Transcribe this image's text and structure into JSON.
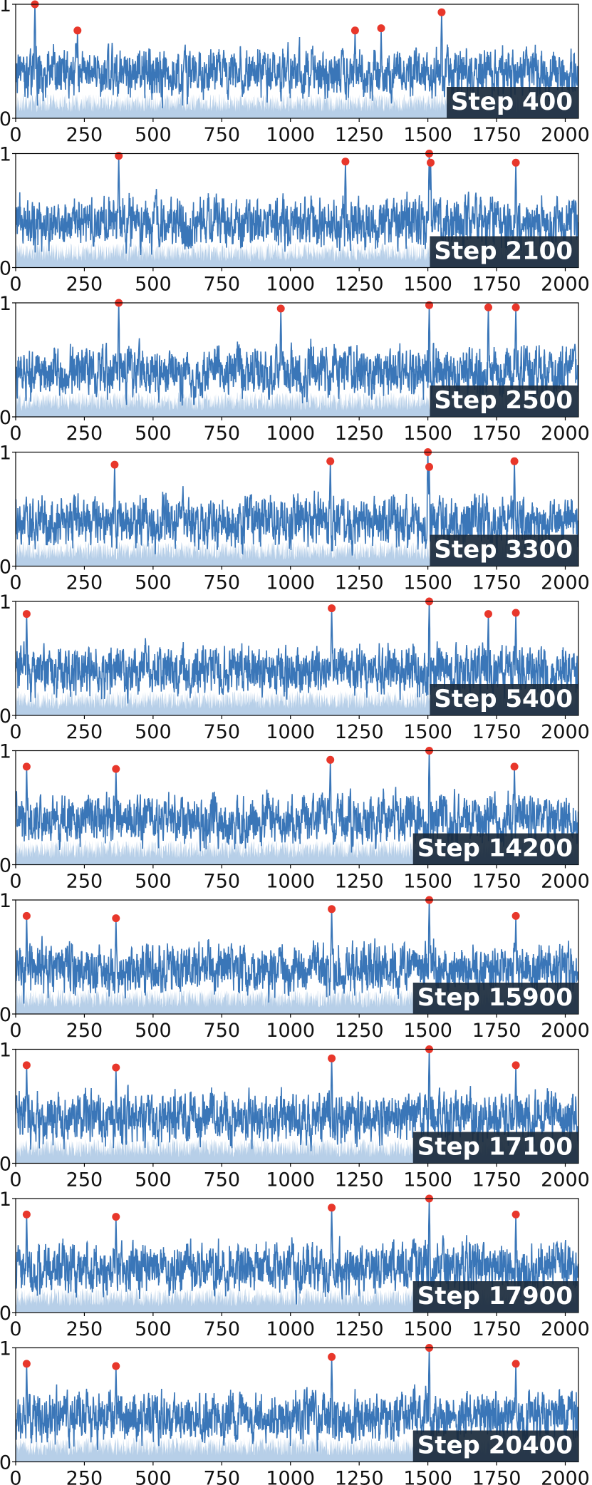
{
  "figure": {
    "x_ticks": [
      "0",
      "250",
      "500",
      "750",
      "1000",
      "1250",
      "1500",
      "1750",
      "2000"
    ],
    "y_ticks": [
      "0",
      "1"
    ],
    "colors": {
      "line": "#3a76b8",
      "fill": "#b7cfe8",
      "peak": "#e8372b",
      "label_box": "#1a2a3c",
      "label_text": "#ffffff",
      "axis": "#000000",
      "background": "#ffffff"
    }
  },
  "chart_data": [
    {
      "type": "line",
      "step_label": "Step 400",
      "xlim": [
        0,
        2048
      ],
      "ylim": [
        0,
        1
      ],
      "x_ticks": [
        0,
        250,
        500,
        750,
        1000,
        1250,
        1500,
        1750,
        2000
      ],
      "y_ticks": [
        0,
        1
      ],
      "series": [
        {
          "peaks": [
            [
              70,
              1.0
            ],
            [
              225,
              0.77
            ],
            [
              1235,
              0.77
            ],
            [
              1330,
              0.79
            ],
            [
              1550,
              0.93
            ]
          ]
        }
      ]
    },
    {
      "type": "line",
      "step_label": "Step 2100",
      "xlim": [
        0,
        2048
      ],
      "ylim": [
        0,
        1
      ],
      "x_ticks": [
        0,
        250,
        500,
        750,
        1000,
        1250,
        1500,
        1750,
        2000
      ],
      "y_ticks": [
        0,
        1
      ],
      "series": [
        {
          "peaks": [
            [
              375,
              0.98
            ],
            [
              1200,
              0.93
            ],
            [
              1505,
              1.0
            ],
            [
              1510,
              0.92
            ],
            [
              1820,
              0.92
            ]
          ]
        }
      ]
    },
    {
      "type": "line",
      "step_label": "Step 2500",
      "xlim": [
        0,
        2048
      ],
      "ylim": [
        0,
        1
      ],
      "x_ticks": [
        0,
        250,
        500,
        750,
        1000,
        1250,
        1500,
        1750,
        2000
      ],
      "y_ticks": [
        0,
        1
      ],
      "series": [
        {
          "peaks": [
            [
              375,
              1.0
            ],
            [
              965,
              0.95
            ],
            [
              1505,
              0.98
            ],
            [
              1720,
              0.96
            ],
            [
              1820,
              0.96
            ]
          ]
        }
      ]
    },
    {
      "type": "line",
      "step_label": "Step 3300",
      "xlim": [
        0,
        2048
      ],
      "ylim": [
        0,
        1
      ],
      "x_ticks": [
        0,
        250,
        500,
        750,
        1000,
        1250,
        1500,
        1750,
        2000
      ],
      "y_ticks": [
        0,
        1
      ],
      "series": [
        {
          "peaks": [
            [
              360,
              0.89
            ],
            [
              1145,
              0.92
            ],
            [
              1500,
              1.0
            ],
            [
              1505,
              0.87
            ],
            [
              1815,
              0.92
            ]
          ]
        }
      ]
    },
    {
      "type": "line",
      "step_label": "Step 5400",
      "xlim": [
        0,
        2048
      ],
      "ylim": [
        0,
        1
      ],
      "x_ticks": [
        0,
        250,
        500,
        750,
        1000,
        1250,
        1500,
        1750,
        2000
      ],
      "y_ticks": [
        0,
        1
      ],
      "series": [
        {
          "peaks": [
            [
              40,
              0.89
            ],
            [
              1150,
              0.94
            ],
            [
              1505,
              1.0
            ],
            [
              1720,
              0.89
            ],
            [
              1820,
              0.9
            ]
          ]
        }
      ]
    },
    {
      "type": "line",
      "step_label": "Step 14200",
      "xlim": [
        0,
        2048
      ],
      "ylim": [
        0,
        1
      ],
      "x_ticks": [
        0,
        250,
        500,
        750,
        1000,
        1250,
        1500,
        1750,
        2000
      ],
      "y_ticks": [
        0,
        1
      ],
      "series": [
        {
          "peaks": [
            [
              40,
              0.86
            ],
            [
              365,
              0.84
            ],
            [
              1145,
              0.92
            ],
            [
              1505,
              1.0
            ],
            [
              1815,
              0.86
            ]
          ]
        }
      ]
    },
    {
      "type": "line",
      "step_label": "Step 15900",
      "xlim": [
        0,
        2048
      ],
      "ylim": [
        0,
        1
      ],
      "x_ticks": [
        0,
        250,
        500,
        750,
        1000,
        1250,
        1500,
        1750,
        2000
      ],
      "y_ticks": [
        0,
        1
      ],
      "series": [
        {
          "peaks": [
            [
              40,
              0.86
            ],
            [
              365,
              0.84
            ],
            [
              1150,
              0.92
            ],
            [
              1505,
              1.0
            ],
            [
              1820,
              0.86
            ]
          ]
        }
      ]
    },
    {
      "type": "line",
      "step_label": "Step 17100",
      "xlim": [
        0,
        2048
      ],
      "ylim": [
        0,
        1
      ],
      "x_ticks": [
        0,
        250,
        500,
        750,
        1000,
        1250,
        1500,
        1750,
        2000
      ],
      "y_ticks": [
        0,
        1
      ],
      "series": [
        {
          "peaks": [
            [
              40,
              0.86
            ],
            [
              365,
              0.84
            ],
            [
              1150,
              0.92
            ],
            [
              1505,
              1.0
            ],
            [
              1820,
              0.86
            ]
          ]
        }
      ]
    },
    {
      "type": "line",
      "step_label": "Step 17900",
      "xlim": [
        0,
        2048
      ],
      "ylim": [
        0,
        1
      ],
      "x_ticks": [
        0,
        250,
        500,
        750,
        1000,
        1250,
        1500,
        1750,
        2000
      ],
      "y_ticks": [
        0,
        1
      ],
      "series": [
        {
          "peaks": [
            [
              40,
              0.86
            ],
            [
              365,
              0.84
            ],
            [
              1150,
              0.92
            ],
            [
              1505,
              1.0
            ],
            [
              1820,
              0.86
            ]
          ]
        }
      ]
    },
    {
      "type": "line",
      "step_label": "Step 20400",
      "xlim": [
        0,
        2048
      ],
      "ylim": [
        0,
        1
      ],
      "x_ticks": [
        0,
        250,
        500,
        750,
        1000,
        1250,
        1500,
        1750,
        2000
      ],
      "y_ticks": [
        0,
        1
      ],
      "series": [
        {
          "peaks": [
            [
              40,
              0.86
            ],
            [
              365,
              0.84
            ],
            [
              1150,
              0.92
            ],
            [
              1505,
              1.0
            ],
            [
              1820,
              0.86
            ]
          ]
        }
      ]
    }
  ]
}
